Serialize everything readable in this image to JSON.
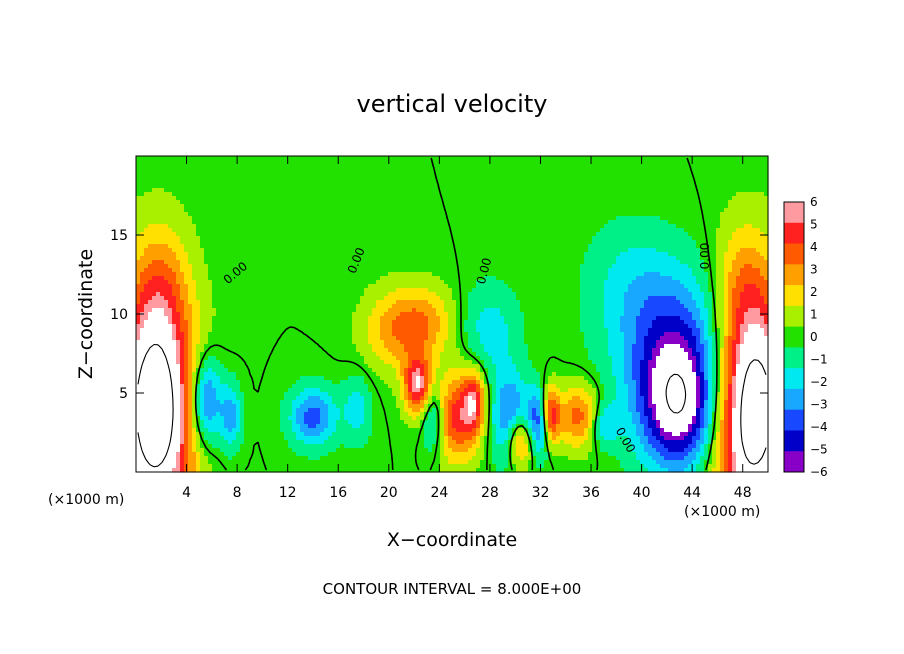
{
  "chart_data": {
    "type": "heatmap",
    "title": "vertical velocity",
    "xlabel": "X−coordinate",
    "ylabel": "Z−coordinate",
    "x_unit_left": "(×1000 m)",
    "x_unit_right": "(×1000 m)",
    "xlim": [
      0,
      50
    ],
    "ylim": [
      0,
      20
    ],
    "xticks": [
      4,
      8,
      12,
      16,
      20,
      24,
      28,
      32,
      36,
      40,
      44,
      48
    ],
    "yticks": [
      5,
      10,
      15
    ],
    "colorbar": {
      "ticks": [
        "6",
        "5",
        "4",
        "3",
        "2",
        "1",
        "0",
        "−1",
        "−2",
        "−3",
        "−4",
        "−5",
        "−6"
      ],
      "colors": [
        "#ff9aa0",
        "#ff2020",
        "#ff5a00",
        "#ffa000",
        "#ffe000",
        "#a8f000",
        "#22e000",
        "#00f088",
        "#00e8f0",
        "#18a8ff",
        "#1848ff",
        "#0000c8",
        "#8800c8"
      ]
    },
    "contour_labels": [
      "0.00",
      "0.00",
      "0.00",
      "0.00",
      "0.00"
    ],
    "footer": "CONTOUR INTERVAL = 8.000E+00",
    "features": [
      {
        "x": 1.5,
        "z": 4.0,
        "sx": 2.2,
        "sz": 5.5,
        "w": 10
      },
      {
        "x": 48.8,
        "z": 4.0,
        "sx": 2.2,
        "sz": 5.5,
        "w": 10
      },
      {
        "x": 2.0,
        "z": 12.0,
        "sx": 1.4,
        "sz": 2.5,
        "w": 1.5
      },
      {
        "x": 48.0,
        "z": 12.0,
        "sx": 1.4,
        "sz": 2.5,
        "w": 1.5
      },
      {
        "x": 5.5,
        "z": 4.5,
        "sx": 0.9,
        "sz": 2.0,
        "w": -5
      },
      {
        "x": 7.5,
        "z": 3.5,
        "sx": 0.6,
        "sz": 1.5,
        "w": -3
      },
      {
        "x": 14.0,
        "z": 3.5,
        "sx": 1.3,
        "sz": 1.3,
        "w": -4
      },
      {
        "x": 17.5,
        "z": 4.0,
        "sx": 0.8,
        "sz": 1.5,
        "w": -2
      },
      {
        "x": 20.5,
        "z": 9.0,
        "sx": 1.8,
        "sz": 1.8,
        "w": 3
      },
      {
        "x": 23.0,
        "z": 9.5,
        "sx": 1.6,
        "sz": 1.6,
        "w": 2.5
      },
      {
        "x": 22.3,
        "z": 5.5,
        "sx": 0.8,
        "sz": 1.3,
        "w": 6
      },
      {
        "x": 23.5,
        "z": 3.5,
        "sx": 0.6,
        "sz": 1.5,
        "w": -3
      },
      {
        "x": 25.5,
        "z": 3.5,
        "sx": 1.2,
        "sz": 2.0,
        "w": 5
      },
      {
        "x": 26.8,
        "z": 4.5,
        "sx": 0.6,
        "sz": 1.3,
        "w": 4
      },
      {
        "x": 28.0,
        "z": 9.0,
        "sx": 1.6,
        "sz": 2.0,
        "w": -2
      },
      {
        "x": 29.5,
        "z": 3.5,
        "sx": 1.0,
        "sz": 2.0,
        "w": -4
      },
      {
        "x": 30.5,
        "z": 2.0,
        "sx": 0.8,
        "sz": 1.2,
        "w": 5
      },
      {
        "x": 31.8,
        "z": 3.0,
        "sx": 0.8,
        "sz": 1.5,
        "w": -5
      },
      {
        "x": 32.8,
        "z": 3.5,
        "sx": 0.5,
        "sz": 1.3,
        "w": 6
      },
      {
        "x": 35.0,
        "z": 3.5,
        "sx": 1.2,
        "sz": 1.4,
        "w": 4
      },
      {
        "x": 37.0,
        "z": 3.0,
        "sx": 0.8,
        "sz": 1.0,
        "w": -2.5
      },
      {
        "x": 42.5,
        "z": 8.5,
        "sx": 3.3,
        "sz": 3.2,
        "w": -4
      },
      {
        "x": 43.0,
        "z": 4.0,
        "sx": 2.3,
        "sz": 2.8,
        "w": -7
      },
      {
        "x": 39.0,
        "z": 12.5,
        "sx": 2.5,
        "sz": 2.5,
        "w": -1.2
      }
    ]
  }
}
